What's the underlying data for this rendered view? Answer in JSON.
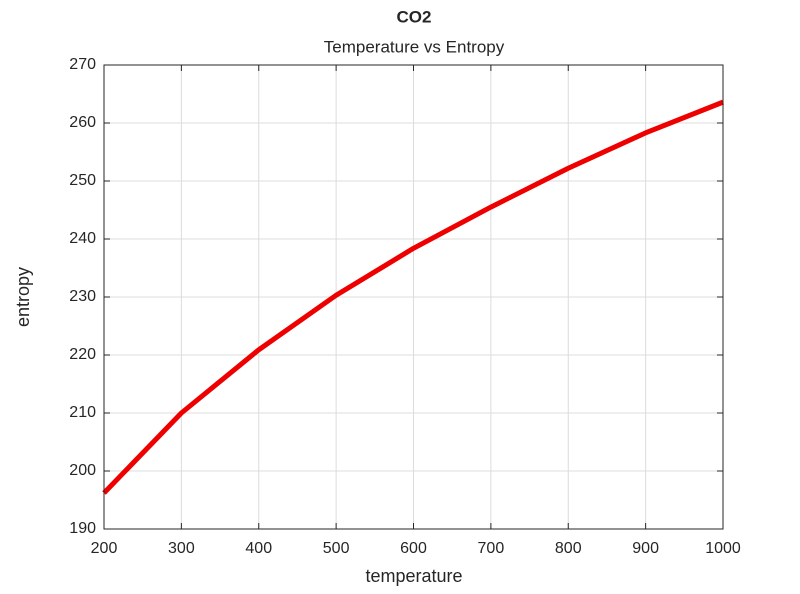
{
  "chart_data": {
    "type": "line",
    "title": "CO2",
    "subtitle": "Temperature vs Entropy",
    "x_label": "temperature",
    "y_label": "entropy",
    "x": [
      200,
      300,
      400,
      500,
      600,
      700,
      800,
      900,
      1000
    ],
    "series": [
      {
        "color": "#ee0000",
        "values": [
          196.2,
          210.0,
          220.9,
          230.3,
          238.4,
          245.5,
          252.2,
          258.3,
          263.6
        ]
      }
    ],
    "xlim": [
      200,
      1000
    ],
    "xticks": [
      200,
      300,
      400,
      500,
      600,
      700,
      800,
      900,
      1000
    ],
    "ylim": [
      190,
      270
    ],
    "yticks": [
      190,
      200,
      210,
      220,
      230,
      240,
      250,
      260,
      270
    ],
    "grid": true
  }
}
